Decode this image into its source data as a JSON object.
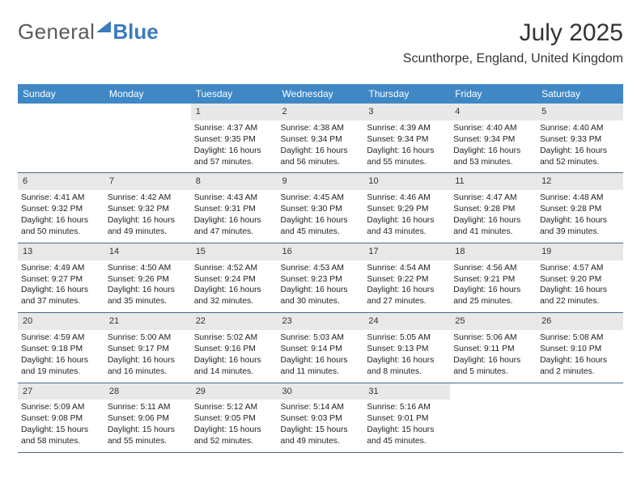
{
  "brand": {
    "part1": "General",
    "part2": "Blue"
  },
  "title": "July 2025",
  "location": "Scunthorpe, England, United Kingdom",
  "header_bg": "#3f88c5",
  "columns": [
    "Sunday",
    "Monday",
    "Tuesday",
    "Wednesday",
    "Thursday",
    "Friday",
    "Saturday"
  ],
  "weeks": [
    [
      null,
      null,
      {
        "n": "1",
        "sr": "4:37 AM",
        "ss": "9:35 PM",
        "dl": "16 hours and 57 minutes."
      },
      {
        "n": "2",
        "sr": "4:38 AM",
        "ss": "9:34 PM",
        "dl": "16 hours and 56 minutes."
      },
      {
        "n": "3",
        "sr": "4:39 AM",
        "ss": "9:34 PM",
        "dl": "16 hours and 55 minutes."
      },
      {
        "n": "4",
        "sr": "4:40 AM",
        "ss": "9:34 PM",
        "dl": "16 hours and 53 minutes."
      },
      {
        "n": "5",
        "sr": "4:40 AM",
        "ss": "9:33 PM",
        "dl": "16 hours and 52 minutes."
      }
    ],
    [
      {
        "n": "6",
        "sr": "4:41 AM",
        "ss": "9:32 PM",
        "dl": "16 hours and 50 minutes."
      },
      {
        "n": "7",
        "sr": "4:42 AM",
        "ss": "9:32 PM",
        "dl": "16 hours and 49 minutes."
      },
      {
        "n": "8",
        "sr": "4:43 AM",
        "ss": "9:31 PM",
        "dl": "16 hours and 47 minutes."
      },
      {
        "n": "9",
        "sr": "4:45 AM",
        "ss": "9:30 PM",
        "dl": "16 hours and 45 minutes."
      },
      {
        "n": "10",
        "sr": "4:46 AM",
        "ss": "9:29 PM",
        "dl": "16 hours and 43 minutes."
      },
      {
        "n": "11",
        "sr": "4:47 AM",
        "ss": "9:28 PM",
        "dl": "16 hours and 41 minutes."
      },
      {
        "n": "12",
        "sr": "4:48 AM",
        "ss": "9:28 PM",
        "dl": "16 hours and 39 minutes."
      }
    ],
    [
      {
        "n": "13",
        "sr": "4:49 AM",
        "ss": "9:27 PM",
        "dl": "16 hours and 37 minutes."
      },
      {
        "n": "14",
        "sr": "4:50 AM",
        "ss": "9:26 PM",
        "dl": "16 hours and 35 minutes."
      },
      {
        "n": "15",
        "sr": "4:52 AM",
        "ss": "9:24 PM",
        "dl": "16 hours and 32 minutes."
      },
      {
        "n": "16",
        "sr": "4:53 AM",
        "ss": "9:23 PM",
        "dl": "16 hours and 30 minutes."
      },
      {
        "n": "17",
        "sr": "4:54 AM",
        "ss": "9:22 PM",
        "dl": "16 hours and 27 minutes."
      },
      {
        "n": "18",
        "sr": "4:56 AM",
        "ss": "9:21 PM",
        "dl": "16 hours and 25 minutes."
      },
      {
        "n": "19",
        "sr": "4:57 AM",
        "ss": "9:20 PM",
        "dl": "16 hours and 22 minutes."
      }
    ],
    [
      {
        "n": "20",
        "sr": "4:59 AM",
        "ss": "9:18 PM",
        "dl": "16 hours and 19 minutes."
      },
      {
        "n": "21",
        "sr": "5:00 AM",
        "ss": "9:17 PM",
        "dl": "16 hours and 16 minutes."
      },
      {
        "n": "22",
        "sr": "5:02 AM",
        "ss": "9:16 PM",
        "dl": "16 hours and 14 minutes."
      },
      {
        "n": "23",
        "sr": "5:03 AM",
        "ss": "9:14 PM",
        "dl": "16 hours and 11 minutes."
      },
      {
        "n": "24",
        "sr": "5:05 AM",
        "ss": "9:13 PM",
        "dl": "16 hours and 8 minutes."
      },
      {
        "n": "25",
        "sr": "5:06 AM",
        "ss": "9:11 PM",
        "dl": "16 hours and 5 minutes."
      },
      {
        "n": "26",
        "sr": "5:08 AM",
        "ss": "9:10 PM",
        "dl": "16 hours and 2 minutes."
      }
    ],
    [
      {
        "n": "27",
        "sr": "5:09 AM",
        "ss": "9:08 PM",
        "dl": "15 hours and 58 minutes."
      },
      {
        "n": "28",
        "sr": "5:11 AM",
        "ss": "9:06 PM",
        "dl": "15 hours and 55 minutes."
      },
      {
        "n": "29",
        "sr": "5:12 AM",
        "ss": "9:05 PM",
        "dl": "15 hours and 52 minutes."
      },
      {
        "n": "30",
        "sr": "5:14 AM",
        "ss": "9:03 PM",
        "dl": "15 hours and 49 minutes."
      },
      {
        "n": "31",
        "sr": "5:16 AM",
        "ss": "9:01 PM",
        "dl": "15 hours and 45 minutes."
      },
      null,
      null
    ]
  ]
}
